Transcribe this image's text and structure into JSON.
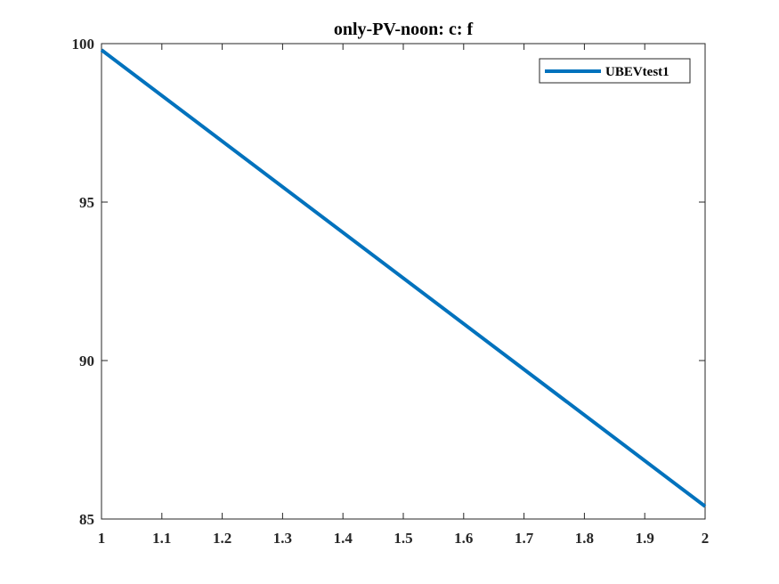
{
  "chart_data": {
    "type": "line",
    "title": "only-PV-noon: c: f",
    "xlabel": "",
    "ylabel": "",
    "xlim": [
      1,
      2
    ],
    "ylim": [
      85,
      100
    ],
    "xticks": [
      1,
      1.1,
      1.2,
      1.3,
      1.4,
      1.5,
      1.6,
      1.7,
      1.8,
      1.9,
      2
    ],
    "xtick_labels": [
      "1",
      "1.1",
      "1.2",
      "1.3",
      "1.4",
      "1.5",
      "1.6",
      "1.7",
      "1.8",
      "1.9",
      "2"
    ],
    "yticks": [
      85,
      90,
      95,
      100
    ],
    "ytick_labels": [
      "85",
      "90",
      "95",
      "100"
    ],
    "grid": false,
    "legend_position": "top-right",
    "series": [
      {
        "name": "UBEVtest1",
        "color": "#0072BD",
        "x": [
          1,
          2
        ],
        "y": [
          99.8,
          85.4
        ]
      }
    ]
  }
}
